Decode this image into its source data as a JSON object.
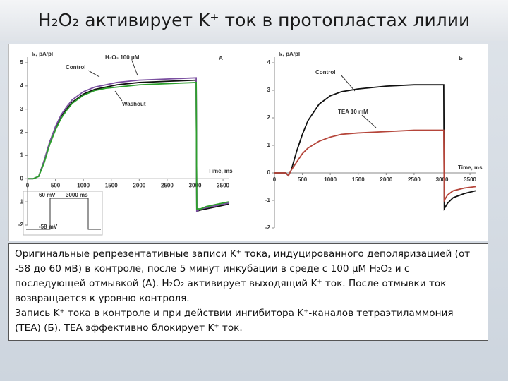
{
  "slide_title": "H₂O₂ активирует K⁺ ток в протопластах лилии",
  "caption": [
    "Оригинальные репрезентативные записи K⁺ тока, индуцированного деполяризацией (от -58 до 60 мВ) в контроле, после 5 минут инкубации в среде с 100 μM H₂O₂ и с последующей отмывкой (А). H₂O₂ активирует выходящий K⁺ ток. После отмывки ток возвращается к уровню контроля.",
    "Запись K⁺ тока в контроле и при действии ингибитора K⁺-каналов тетраэтиламмония (ТЕА) (Б). ТЕА эффективно блокирует K⁺ ток."
  ],
  "chart_data": [
    {
      "type": "line",
      "panel_label": "А",
      "ylabel": "Iₖ, pA/pF",
      "xlabel": "Time, ms",
      "annotations": [
        "Control",
        "H₂O₂ 100 μM",
        "Washout"
      ],
      "inset": [
        "60 mV",
        "-58 mV",
        "3000 ms"
      ],
      "x": [
        0,
        100,
        200,
        300,
        400,
        500,
        600,
        700,
        800,
        1000,
        1200,
        1400,
        1600,
        1800,
        2000,
        2500,
        3020,
        3030,
        3100,
        3200,
        3400,
        3600
      ],
      "series": [
        {
          "name": "Control",
          "color": "#111111",
          "values": [
            0,
            0,
            0.1,
            0.8,
            1.6,
            2.2,
            2.7,
            3.0,
            3.3,
            3.65,
            3.85,
            3.95,
            4.05,
            4.1,
            4.15,
            4.2,
            4.25,
            -1.4,
            -1.35,
            -1.3,
            -1.2,
            -1.1
          ]
        },
        {
          "name": "H₂O₂ 100 μM",
          "color": "#7a4fa0",
          "values": [
            0,
            0,
            0.1,
            0.8,
            1.6,
            2.25,
            2.75,
            3.1,
            3.4,
            3.75,
            3.95,
            4.05,
            4.15,
            4.2,
            4.25,
            4.3,
            4.35,
            -1.4,
            -1.3,
            -1.25,
            -1.15,
            -1.05
          ]
        },
        {
          "name": "Washout",
          "color": "#2ca02c",
          "values": [
            0,
            0,
            0.1,
            0.7,
            1.5,
            2.1,
            2.6,
            2.95,
            3.25,
            3.6,
            3.8,
            3.9,
            3.95,
            4.0,
            4.05,
            4.1,
            4.15,
            -1.3,
            -1.3,
            -1.2,
            -1.1,
            -1.0
          ]
        }
      ],
      "xlim": [
        0,
        3600
      ],
      "xticks": [
        0,
        500,
        1000,
        1500,
        2000,
        2500,
        3000,
        3500
      ],
      "ylim": [
        -2,
        5
      ],
      "yticks": [
        -2,
        -1,
        0,
        1,
        2,
        3,
        4,
        5
      ]
    },
    {
      "type": "line",
      "panel_label": "Б",
      "ylabel": "Iₖ, pA/pF",
      "xlabel": "Time, ms",
      "annotations": [
        "Control",
        "TEA 10 mM"
      ],
      "x": [
        0,
        150,
        200,
        250,
        300,
        400,
        500,
        600,
        800,
        1000,
        1200,
        1500,
        2000,
        2500,
        3030,
        3040,
        3100,
        3200,
        3400,
        3600
      ],
      "series": [
        {
          "name": "Control",
          "color": "#111111",
          "values": [
            0,
            0,
            0,
            -0.1,
            0.1,
            0.8,
            1.4,
            1.9,
            2.5,
            2.8,
            2.95,
            3.05,
            3.15,
            3.2,
            3.2,
            -1.3,
            -1.1,
            -0.9,
            -0.75,
            -0.65
          ]
        },
        {
          "name": "TEA 10 mM",
          "color": "#b5453a",
          "values": [
            0,
            0,
            0,
            -0.1,
            0.1,
            0.4,
            0.7,
            0.9,
            1.15,
            1.3,
            1.4,
            1.45,
            1.5,
            1.55,
            1.55,
            -1.0,
            -0.8,
            -0.65,
            -0.55,
            -0.5
          ]
        }
      ],
      "xlim": [
        0,
        3600
      ],
      "xticks": [
        0,
        500,
        1000,
        1500,
        2000,
        2500,
        3000,
        3500
      ],
      "ylim": [
        -2,
        4
      ],
      "yticks": [
        -2,
        -1,
        0,
        1,
        2,
        3,
        4
      ]
    }
  ]
}
